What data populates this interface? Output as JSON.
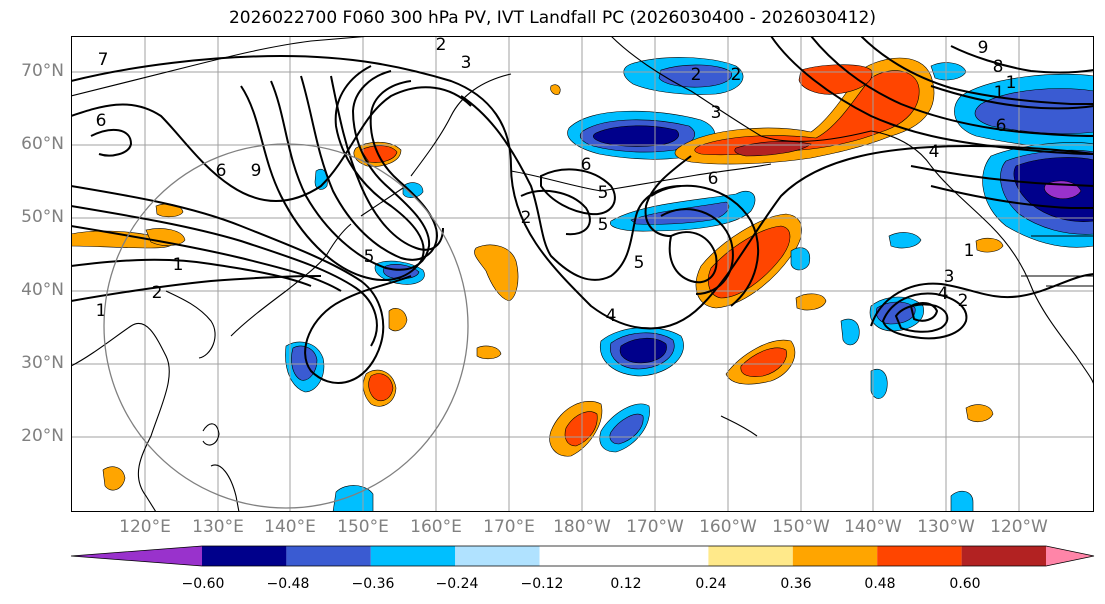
{
  "title": "2026022700 F060 300 hPa PV, IVT Landfall PC (2026030400 - 2026030412)",
  "lat_labels": [
    "70°N",
    "60°N",
    "50°N",
    "40°N",
    "30°N",
    "20°N"
  ],
  "lon_labels": [
    "120°E",
    "130°E",
    "140°E",
    "150°E",
    "160°E",
    "170°E",
    "180°W",
    "170°W",
    "160°W",
    "150°W",
    "140°W",
    "130°W",
    "120°W"
  ],
  "colorbar": {
    "ticks": [
      "−0.60",
      "−0.48",
      "−0.36",
      "−0.24",
      "−0.12",
      "0.12",
      "0.24",
      "0.36",
      "0.48",
      "0.60"
    ],
    "bins": [
      {
        "lo": -0.72,
        "hi": -0.6,
        "color": "#9932CC"
      },
      {
        "lo": -0.6,
        "hi": -0.48,
        "color": "#00008B"
      },
      {
        "lo": -0.48,
        "hi": -0.36,
        "color": "#3A5BD2"
      },
      {
        "lo": -0.36,
        "hi": -0.24,
        "color": "#00BFFF"
      },
      {
        "lo": -0.24,
        "hi": -0.12,
        "color": "#B0E2FF"
      },
      {
        "lo": -0.12,
        "hi": 0.12,
        "color": "#FFFFFF"
      },
      {
        "lo": 0.12,
        "hi": 0.24,
        "color": "#FFE98A"
      },
      {
        "lo": 0.24,
        "hi": 0.36,
        "color": "#FFA500"
      },
      {
        "lo": 0.36,
        "hi": 0.48,
        "color": "#FF4500"
      },
      {
        "lo": 0.48,
        "hi": 0.6,
        "color": "#B22222"
      },
      {
        "lo": 0.6,
        "hi": 0.72,
        "color": "#FF85A8"
      }
    ]
  },
  "pv_contour_labels": [
    "7",
    "6",
    "2",
    "3",
    "9",
    "6",
    "1",
    "1",
    "2",
    "5",
    "6",
    "5",
    "5",
    "2",
    "5",
    "6",
    "4",
    "3",
    "2",
    "2",
    "1",
    "9",
    "8",
    "1",
    "6",
    "4",
    "1",
    "3",
    "4",
    "2"
  ]
}
